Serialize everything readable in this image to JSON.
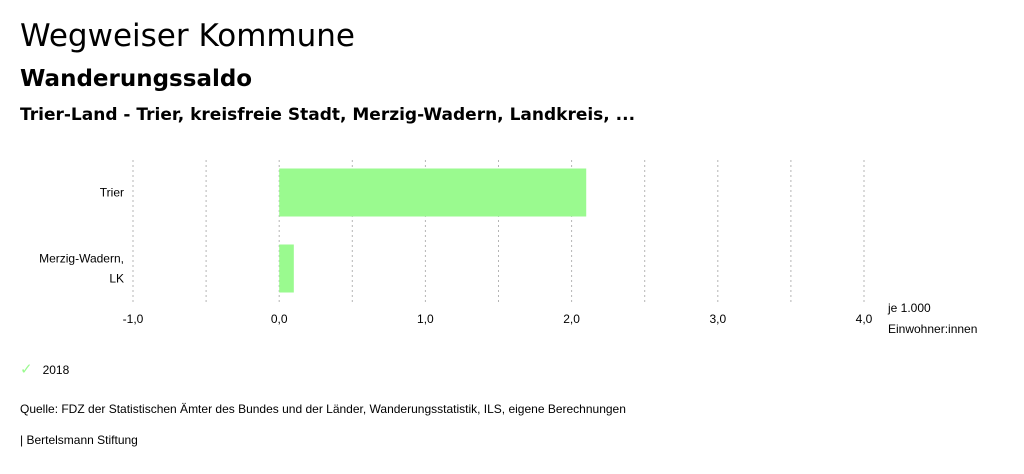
{
  "header": {
    "title": "Wegweiser Kommune",
    "subtitle": "Wanderungssaldo",
    "region": "Trier-Land - Trier, kreisfreie Stadt, Merzig-Wadern, Landkreis, ..."
  },
  "chart_data": {
    "type": "bar",
    "orientation": "horizontal",
    "categories": [
      "Trier",
      "Merzig-Wadern, LK"
    ],
    "category_lines": [
      [
        "Trier"
      ],
      [
        "Merzig-Wadern,",
        "LK"
      ]
    ],
    "series": [
      {
        "name": "2018",
        "values": [
          2.1,
          0.1
        ],
        "color": "#9afa8f"
      }
    ],
    "xlim": [
      -1.0,
      4.0
    ],
    "xticks": [
      -1.0,
      0.0,
      1.0,
      2.0,
      3.0,
      4.0
    ],
    "xtick_labels": [
      "-1,0",
      "0,0",
      "1,0",
      "2,0",
      "3,0",
      "4,0"
    ],
    "grid": "vertical dotted",
    "unit_lines": [
      "je 1.000",
      "Einwohner:innen"
    ],
    "legend_position": "bottom-left"
  },
  "legend": {
    "label": "2018",
    "icon": "check-icon",
    "color": "#9afa8f"
  },
  "footer": {
    "source": "Quelle: FDZ der Statistischen Ämter des Bundes und der Länder, Wanderungsstatistik, ILS, eigene Berechnungen",
    "copyright": "| Bertelsmann Stiftung"
  }
}
